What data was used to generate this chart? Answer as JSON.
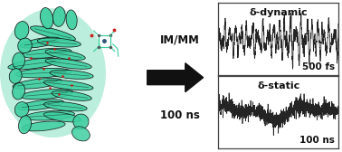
{
  "background_color": "#ffffff",
  "arrow_label_top": "IM/MM",
  "arrow_label_bottom": "100 ns",
  "panel_top_title": "δ-dynamic",
  "panel_top_xlabel": "500 fs",
  "panel_bottom_title": "δ-static",
  "panel_bottom_xlabel": "100 ns",
  "fig_width": 3.78,
  "fig_height": 1.68,
  "dpi": 100,
  "arrow_color": "#111111",
  "text_color": "#111111",
  "line_color": "#111111",
  "protein_teal": "#3ecfa0",
  "protein_dark": "#1a8060",
  "protein_black": "#0a0a0a",
  "dynamic_seed": 7,
  "static_seed": 12
}
